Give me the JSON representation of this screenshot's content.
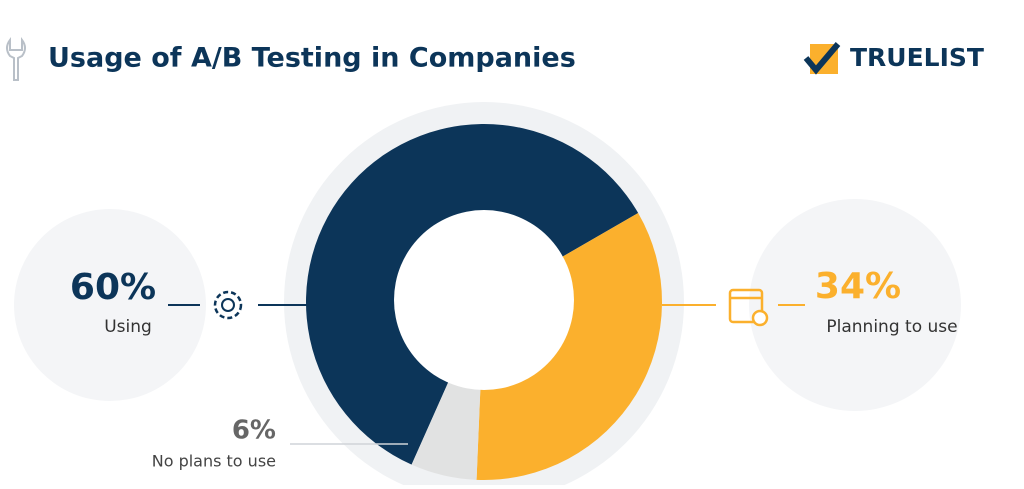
{
  "brand": "TRUELIST",
  "chart_data": {
    "type": "donut",
    "title": "Usage of A/B Testing in Companies",
    "categories": [
      "Using",
      "Planning to use",
      "No plans to use"
    ],
    "values": [
      60,
      34,
      6
    ],
    "value_labels": [
      "60%",
      "34%",
      "6%"
    ],
    "colors": [
      "#0c3559",
      "#fbb02d",
      "#e1e2e2"
    ]
  }
}
